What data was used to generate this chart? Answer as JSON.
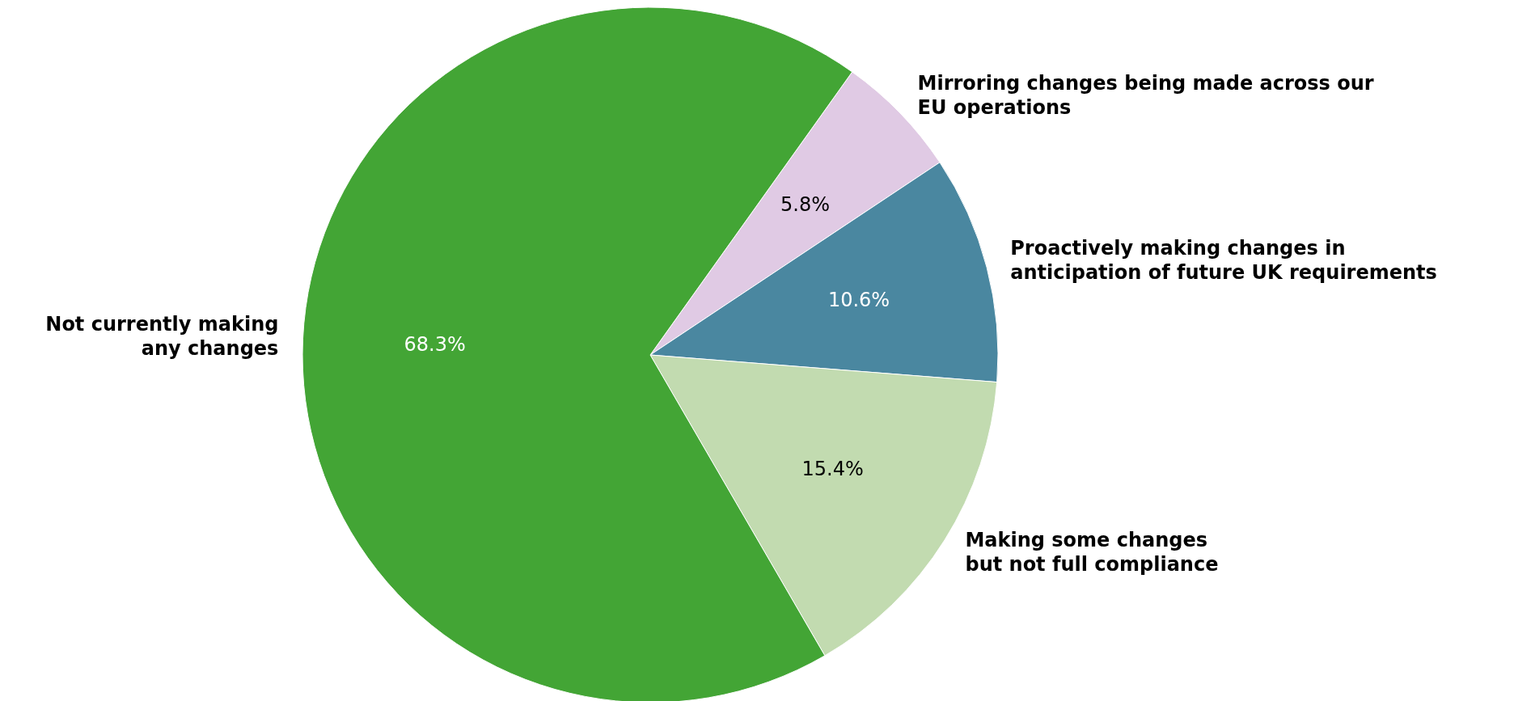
{
  "chart_data": {
    "type": "pie",
    "categories": [
      "Mirroring changes being made across our\nEU operations",
      "Proactively making changes in\nanticipation of future UK requirements",
      "Making some changes\nbut not full compliance",
      "Not currently making\nany changes"
    ],
    "values": [
      5.8,
      10.6,
      15.4,
      68.3
    ],
    "colors": [
      "#e0cae4",
      "#4a87a0",
      "#c2dbb0",
      "#43a535"
    ],
    "value_labels": [
      "5.8%",
      "10.6%",
      "15.4%",
      "68.3%"
    ]
  }
}
